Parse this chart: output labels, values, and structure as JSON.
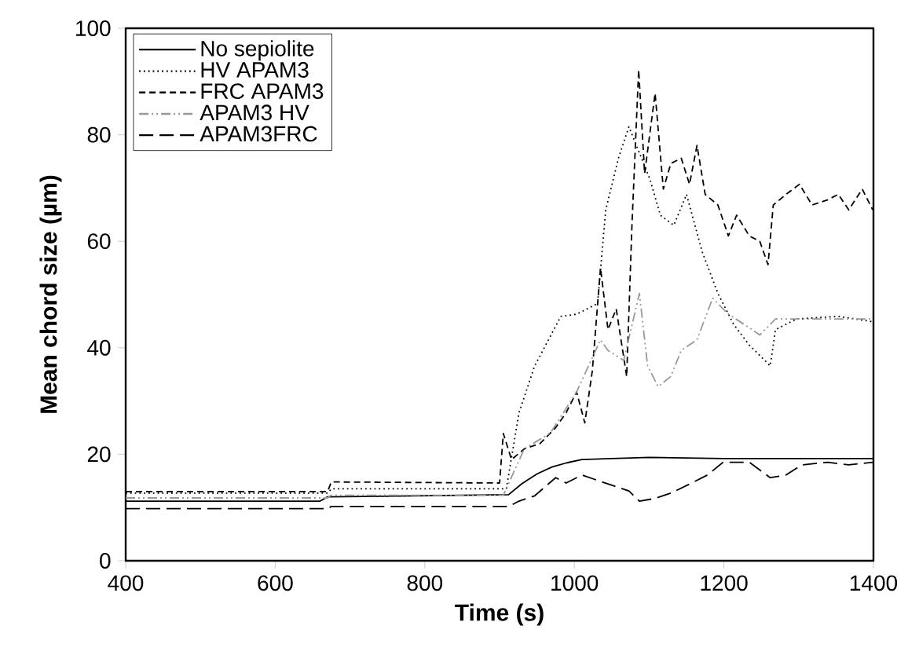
{
  "chart_data": {
    "type": "line",
    "xlabel": "Time (s)",
    "ylabel": "Mean chord size (µm)",
    "xlim": [
      400,
      1400
    ],
    "ylim": [
      0,
      100
    ],
    "xticks": [
      400,
      600,
      800,
      1000,
      1200,
      1400
    ],
    "yticks": [
      0,
      20,
      40,
      60,
      80,
      100
    ],
    "legend": "top left",
    "grid": false,
    "marker": "none",
    "series": [
      {
        "name": "No sepiolite",
        "color": "#000000",
        "line_style": "solid",
        "x": [
          400,
          660,
          670,
          912,
          930,
          950,
          970,
          990,
          1010,
          1050,
          1100,
          1200,
          1300,
          1400
        ],
        "values": [
          11.2,
          11.2,
          12,
          12.4,
          14.5,
          16.3,
          17.6,
          18.4,
          19,
          19.2,
          19.4,
          19.2,
          19.2,
          19.2
        ]
      },
      {
        "name": "HV APAM3",
        "color": "#000000",
        "line_style": "dotted",
        "x": [
          400,
          670,
          675,
          909,
          926,
          947,
          982,
          1003,
          1031,
          1042,
          1059,
          1073,
          1087,
          1101,
          1115,
          1133,
          1150,
          1171,
          1192,
          1213,
          1234,
          1262,
          1269,
          1297,
          1353,
          1399
        ],
        "values": [
          12.7,
          12.7,
          13.5,
          13.5,
          27.8,
          36.6,
          45.9,
          46.3,
          48.3,
          65.9,
          75.6,
          81.5,
          76.6,
          71.7,
          64.9,
          63,
          68.8,
          58,
          50.2,
          44.4,
          40.5,
          36.6,
          43.4,
          45.4,
          45.9,
          44.9
        ]
      },
      {
        "name": "FRC APAM3",
        "color": "#000000",
        "line_style": "dashed",
        "x": [
          400,
          670,
          675,
          900,
          905,
          916,
          933,
          954,
          975,
          989,
          1003,
          1014,
          1024,
          1035,
          1045,
          1056,
          1070,
          1077,
          1086,
          1094,
          1108,
          1119,
          1129,
          1143,
          1154,
          1164,
          1175,
          1192,
          1206,
          1217,
          1234,
          1248,
          1259,
          1266,
          1283,
          1301,
          1318,
          1339,
          1353,
          1367,
          1385,
          1399
        ],
        "values": [
          13,
          13,
          14.8,
          14.6,
          23.9,
          19,
          21,
          22,
          25,
          27.8,
          31.7,
          25.9,
          35.6,
          55,
          43.4,
          47.3,
          34.6,
          62.9,
          92.2,
          72.7,
          87.8,
          69.8,
          74.6,
          75.6,
          70.7,
          78,
          68.8,
          66.8,
          61,
          64.9,
          61,
          60,
          55.6,
          66.8,
          68.8,
          70.7,
          66.8,
          67.8,
          68.8,
          65.9,
          69.8,
          65.9
        ]
      },
      {
        "name": "APAM3  HV",
        "color": "#999999",
        "line_style": "dashdotdotted",
        "x": [
          400,
          670,
          675,
          905,
          933,
          968,
          1003,
          1035,
          1045,
          1066,
          1087,
          1098,
          1112,
          1129,
          1143,
          1164,
          1185,
          1206,
          1227,
          1248,
          1269,
          1318,
          1399
        ],
        "values": [
          11.8,
          11.8,
          12.3,
          12.3,
          21,
          24,
          31.7,
          41.5,
          39.5,
          37.6,
          50.2,
          36.6,
          32.7,
          34.6,
          39.5,
          41.5,
          49.3,
          46.3,
          44.4,
          42.4,
          45.4,
          45.4,
          45.4
        ]
      },
      {
        "name": "APAM3FRC",
        "color": "#000000",
        "line_style": "loosely dashed",
        "x": [
          400,
          670,
          675,
          912,
          926,
          947,
          975,
          989,
          1010,
          1031,
          1052,
          1073,
          1087,
          1108,
          1129,
          1157,
          1178,
          1199,
          1234,
          1262,
          1283,
          1304,
          1339,
          1367,
          1399
        ],
        "values": [
          9.8,
          9.8,
          10.2,
          10.2,
          11.2,
          12.2,
          15.6,
          14.6,
          16.1,
          15.1,
          14.1,
          13.1,
          11.2,
          11.7,
          12.7,
          14.6,
          16.1,
          18.5,
          18.5,
          15.6,
          16.1,
          18,
          18.5,
          18,
          18.5
        ]
      }
    ]
  }
}
